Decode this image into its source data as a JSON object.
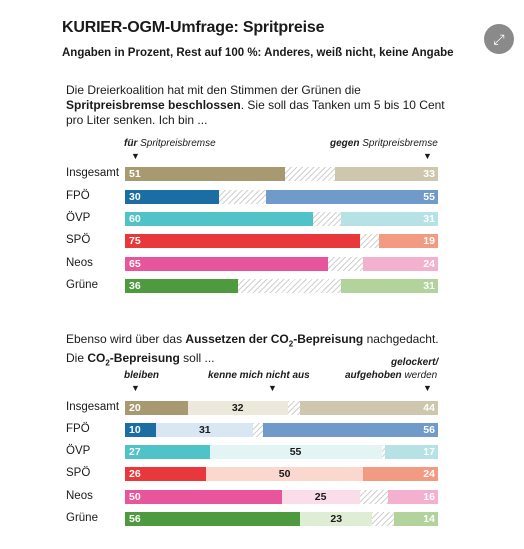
{
  "header": {
    "title": "KURIER-OGM-Umfrage: Spritpreise",
    "subtitle": "Angaben in Prozent, Rest auf 100 %: Anderes, weiß nicht, keine Angabe",
    "expand_icon": "expand-icon"
  },
  "section1": {
    "intro_line1": "Die Dreierkoalition hat mit den Stimmen der Grünen die",
    "intro_bold": "Spritpreisbremse beschlossen",
    "intro_line2_rest": ". Sie soll das Tanken um 5 bis 10 Cent",
    "intro_line3": "pro Liter senken. Ich bin ...",
    "col_left_bold": "für",
    "col_left_rest": " Spritpreisbremse",
    "col_right_bold": "gegen",
    "col_right_rest": " Spritpreisbremse"
  },
  "section2": {
    "intro_a": "Ebenso wird über das ",
    "intro_bold_a": "Aussetzen der CO",
    "intro_sub": "2",
    "intro_bold_a2": "-Bepreisung",
    "intro_b": " nachgedacht.",
    "intro_c": "Die ",
    "intro_bold_c": "CO",
    "intro_bold_c2": "-Bepreisung",
    "intro_d": " soll ...",
    "col1": "bleiben",
    "col2": "kenne mich nicht aus",
    "col3_line1": "gelockert/",
    "col3_bold": "aufgehoben",
    "col3_rest": " werden"
  },
  "chart_data": [
    {
      "type": "bar",
      "stacked": true,
      "categories": [
        "Insgesamt",
        "FPÖ",
        "ÖVP",
        "SPÖ",
        "Neos",
        "Grüne"
      ],
      "series": [
        {
          "name": "für Spritpreisbremse",
          "values": [
            51,
            30,
            60,
            75,
            65,
            36
          ]
        },
        {
          "name": "gegen Spritpreisbremse",
          "values": [
            33,
            55,
            31,
            19,
            24,
            31
          ]
        }
      ],
      "colors": {
        "left": [
          "#a89a70",
          "#1a6ea3",
          "#4fc3c7",
          "#e8383b",
          "#e8559a",
          "#4e9a3e"
        ],
        "right": [
          "#cfc7ad",
          "#6f9ac9",
          "#b6e2e6",
          "#f39a82",
          "#f3b0cf",
          "#b2d39b"
        ]
      },
      "xlim": [
        0,
        100
      ]
    },
    {
      "type": "bar",
      "stacked": true,
      "categories": [
        "Insgesamt",
        "FPÖ",
        "ÖVP",
        "SPÖ",
        "Neos",
        "Grüne"
      ],
      "series": [
        {
          "name": "bleiben",
          "values": [
            20,
            10,
            27,
            26,
            50,
            56
          ]
        },
        {
          "name": "kenne mich nicht aus",
          "values": [
            32,
            31,
            55,
            50,
            25,
            23
          ]
        },
        {
          "name": "gelockert/aufgehoben werden",
          "values": [
            44,
            56,
            17,
            24,
            16,
            14
          ]
        }
      ],
      "colors": {
        "left": [
          "#a89a70",
          "#1a6ea3",
          "#4fc3c7",
          "#e8383b",
          "#e8559a",
          "#4e9a3e"
        ],
        "mid": [
          "#ece8da",
          "#d9e6f3",
          "#e3f4f5",
          "#fad8cd",
          "#fadde9",
          "#e0edd5"
        ],
        "right": [
          "#cfc7ad",
          "#6f9ac9",
          "#b6e2e6",
          "#f39a82",
          "#f3b0cf",
          "#b2d39b"
        ]
      },
      "xlim": [
        0,
        100
      ]
    }
  ]
}
